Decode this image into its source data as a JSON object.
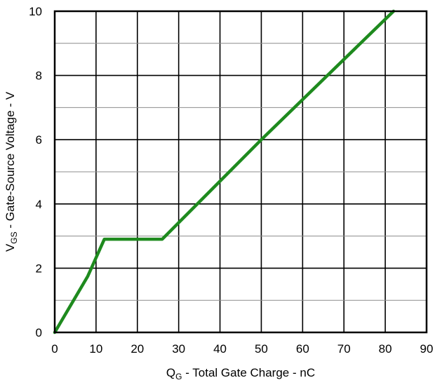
{
  "chart_data": {
    "type": "line",
    "title": "",
    "xlabel": {
      "prefix": "Q",
      "subscript": "G",
      "suffix": " - Total Gate Charge - nC"
    },
    "ylabel": {
      "prefix": "V",
      "subscript": "GS",
      "suffix": " - Gate-Source Voltage - V"
    },
    "xlim": [
      0,
      90
    ],
    "ylim": [
      0,
      10
    ],
    "x_ticks": [
      0,
      10,
      20,
      30,
      40,
      50,
      60,
      70,
      80,
      90
    ],
    "y_ticks": [
      0,
      2,
      4,
      6,
      8,
      10
    ],
    "x_tick_labels": [
      "0",
      "10",
      "20",
      "30",
      "40",
      "50",
      "60",
      "70",
      "80",
      "90"
    ],
    "y_tick_labels": [
      "0",
      "2",
      "4",
      "6",
      "8",
      "10"
    ],
    "grid": true,
    "x_minor_grid_step": 10,
    "y_minor_grid_step": 1,
    "series": [
      {
        "color": "#1e8a1e",
        "x": [
          0,
          8,
          12,
          26,
          50,
          82
        ],
        "y": [
          0,
          1.75,
          2.9,
          2.9,
          6.0,
          10.0
        ]
      }
    ]
  }
}
